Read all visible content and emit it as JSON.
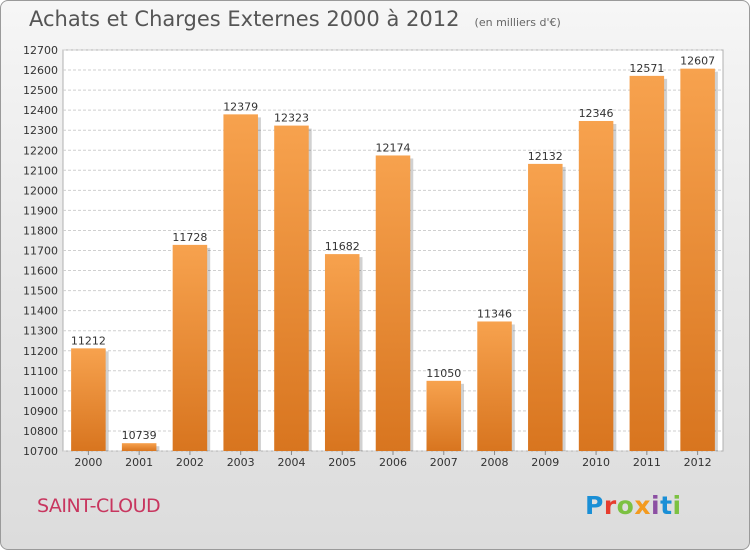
{
  "title": "Achats et Charges Externes 2000 à 2012",
  "subtitle": "(en milliers d'€)",
  "location": "SAINT-CLOUD",
  "brand": {
    "text": "Proxiti",
    "letters": [
      {
        "char": "P",
        "color": "#1a8fd6"
      },
      {
        "char": "r",
        "color": "#e63c2e"
      },
      {
        "char": "o",
        "color": "#7cc142"
      },
      {
        "char": "x",
        "color": "#f39a1e"
      },
      {
        "char": "i",
        "color": "#8c4fa3"
      },
      {
        "char": "t",
        "color": "#1a8fd6"
      },
      {
        "char": "i",
        "color": "#7cc142"
      }
    ]
  },
  "chart_data": {
    "type": "bar",
    "categories": [
      "2000",
      "2001",
      "2002",
      "2003",
      "2004",
      "2005",
      "2006",
      "2007",
      "2008",
      "2009",
      "2010",
      "2011",
      "2012"
    ],
    "values": [
      11212,
      10739,
      11728,
      12379,
      12323,
      11682,
      12174,
      11050,
      11346,
      12132,
      12346,
      12571,
      12607
    ],
    "ylim": [
      10700,
      12700
    ],
    "ytick_step": 100,
    "grid": true,
    "bar_color_top": "#f7a24e",
    "bar_color_bottom": "#d8751f"
  }
}
